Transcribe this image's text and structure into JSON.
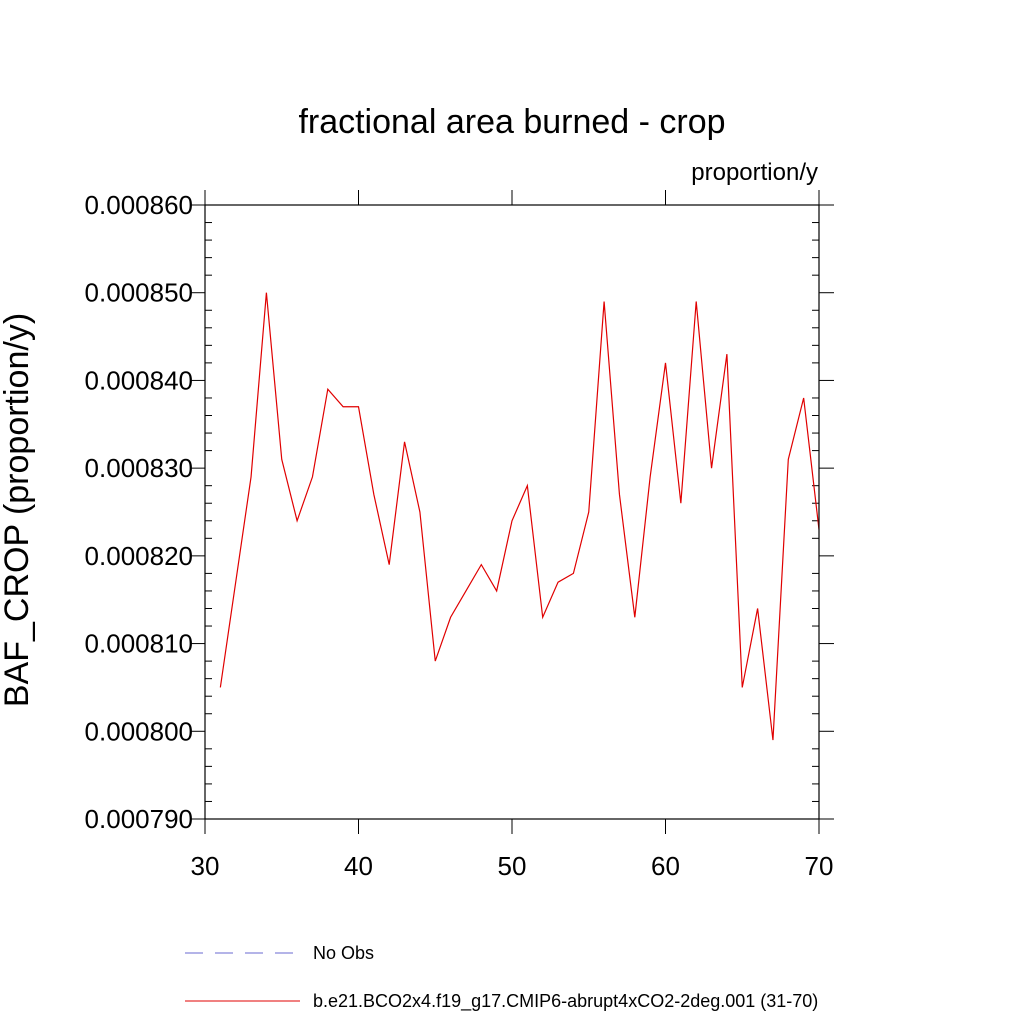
{
  "chart_data": {
    "type": "line",
    "title": "fractional area burned - crop",
    "units_label": "proportion/y",
    "ylabel": "BAF_CROP  (proportion/y)",
    "xlabel": "",
    "xlim": [
      30,
      70
    ],
    "ylim": [
      0.00079,
      0.00086
    ],
    "x_ticks": [
      30,
      40,
      50,
      60,
      70
    ],
    "x_tick_labels": [
      "30",
      "40",
      "50",
      "60",
      "70"
    ],
    "y_ticks": [
      0.00079,
      0.0008,
      0.00081,
      0.00082,
      0.00083,
      0.00084,
      0.00085,
      0.00086
    ],
    "y_tick_labels": [
      "0.000790",
      "0.000800",
      "0.000810",
      "0.000820",
      "0.000830",
      "0.000840",
      "0.000850",
      "0.000860"
    ],
    "grid": false,
    "legend_position": "bottom",
    "legend": [
      {
        "label": "No Obs",
        "style": "dashed",
        "color": "#6a6ad0"
      },
      {
        "label": "b.e21.BCO2x4.f19_g17.CMIP6-abrupt4xCO2-2deg.001 (31-70)",
        "style": "solid",
        "color": "#e00000"
      }
    ],
    "series": [
      {
        "name": "b.e21.BCO2x4.f19_g17.CMIP6-abrupt4xCO2-2deg.001 (31-70)",
        "color": "#e00000",
        "x": [
          31,
          32,
          33,
          34,
          35,
          36,
          37,
          38,
          39,
          40,
          41,
          42,
          43,
          44,
          45,
          46,
          47,
          48,
          49,
          50,
          51,
          52,
          53,
          54,
          55,
          56,
          57,
          58,
          59,
          60,
          61,
          62,
          63,
          64,
          65,
          66,
          67,
          68,
          69,
          70
        ],
        "values": [
          0.000805,
          0.000817,
          0.000829,
          0.00085,
          0.000831,
          0.000824,
          0.000829,
          0.000839,
          0.000837,
          0.000837,
          0.000827,
          0.000819,
          0.000833,
          0.000825,
          0.000808,
          0.000813,
          0.000816,
          0.000819,
          0.000816,
          0.000824,
          0.000828,
          0.000813,
          0.000817,
          0.000818,
          0.000825,
          0.000849,
          0.000827,
          0.000813,
          0.000829,
          0.000842,
          0.000826,
          0.000849,
          0.00083,
          0.000843,
          0.000805,
          0.000814,
          0.000799,
          0.000831,
          0.000838,
          0.000823
        ]
      }
    ]
  }
}
